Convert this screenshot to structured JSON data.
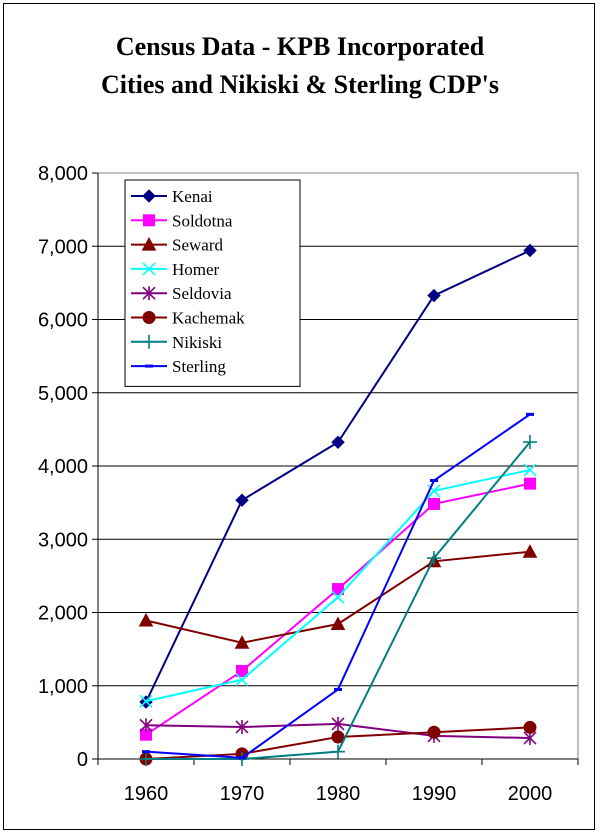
{
  "chart_data": {
    "type": "line",
    "title": [
      "Census Data - KPB Incorporated",
      "Cities and Nikiski & Sterling CDP's"
    ],
    "xlabel": "",
    "ylabel": "",
    "categories": [
      "1960",
      "1970",
      "1980",
      "1990",
      "2000"
    ],
    "ylim": [
      0,
      8000
    ],
    "yticks": [
      0,
      1000,
      2000,
      3000,
      4000,
      5000,
      6000,
      7000,
      8000
    ],
    "ytick_labels": [
      "0",
      "1,000",
      "2,000",
      "3,000",
      "4,000",
      "5,000",
      "6,000",
      "7,000",
      "8,000"
    ],
    "grid": true,
    "legend_position": "top-left",
    "series": [
      {
        "name": "Kenai",
        "color": "#000080",
        "marker": "diamond",
        "values": [
          778,
          3533,
          4324,
          6327,
          6942
        ]
      },
      {
        "name": "Soldotna",
        "color": "#ff00ff",
        "marker": "square",
        "values": [
          332,
          1202,
          2320,
          3482,
          3759
        ]
      },
      {
        "name": "Seward",
        "color": "#800000",
        "marker": "triangle",
        "values": [
          1891,
          1587,
          1843,
          2699,
          2830
        ]
      },
      {
        "name": "Homer",
        "color": "#00ffff",
        "marker": "x",
        "values": [
          788,
          1083,
          2209,
          3660,
          3946
        ]
      },
      {
        "name": "Seldovia",
        "color": "#800080",
        "marker": "asterisk",
        "values": [
          460,
          437,
          479,
          316,
          286
        ]
      },
      {
        "name": "Kachemak",
        "color": "#800000",
        "marker": "circle",
        "values": [
          0,
          70,
          300,
          365,
          431
        ]
      },
      {
        "name": "Nikiski",
        "color": "#008080",
        "marker": "plus",
        "values": [
          0,
          0,
          100,
          2743,
          4327
        ]
      },
      {
        "name": "Sterling",
        "color": "#0000ff",
        "marker": "dash",
        "values": [
          100,
          15,
          950,
          3802,
          4705
        ]
      }
    ]
  }
}
